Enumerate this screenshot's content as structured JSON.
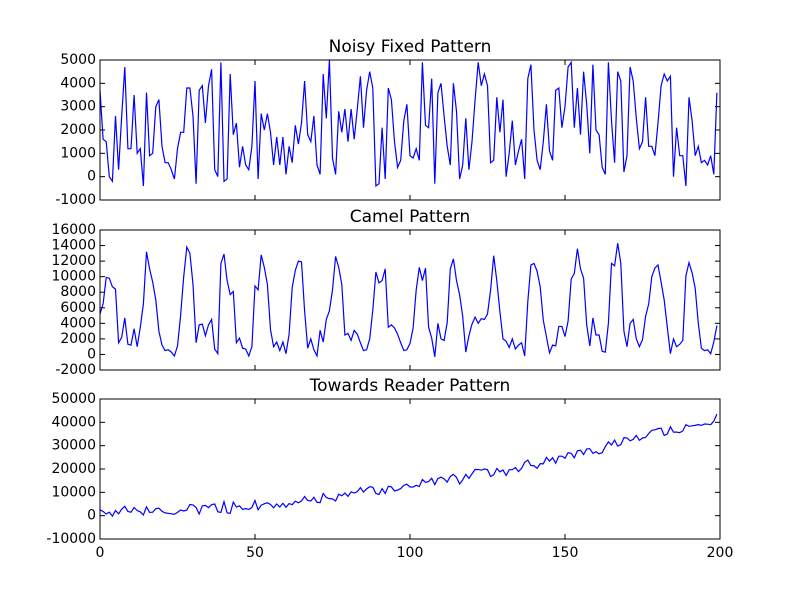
{
  "chart_data": [
    {
      "type": "line",
      "title": "Noisy Fixed Pattern",
      "x": [
        0,
        1,
        2,
        3,
        4,
        5,
        6,
        7,
        8,
        9,
        10,
        11,
        12,
        13,
        14,
        15,
        16,
        17,
        18,
        19,
        20,
        21,
        22,
        23,
        24,
        25,
        26,
        27,
        28,
        29,
        30,
        31,
        32,
        33,
        34,
        35,
        36,
        37,
        38,
        39,
        40,
        41,
        42,
        43,
        44,
        45,
        46,
        47,
        48,
        49,
        50,
        51,
        52,
        53,
        54,
        55,
        56,
        57,
        58,
        59,
        60,
        61,
        62,
        63,
        64,
        65,
        66,
        67,
        68,
        69,
        70,
        71,
        72,
        73,
        74,
        75,
        76,
        77,
        78,
        79,
        80,
        81,
        82,
        83,
        84,
        85,
        86,
        87,
        88,
        89,
        90,
        91,
        92,
        93,
        94,
        95,
        96,
        97,
        98,
        99,
        100,
        101,
        102,
        103,
        104,
        105,
        106,
        107,
        108,
        109,
        110,
        111,
        112,
        113,
        114,
        115,
        116,
        117,
        118,
        119,
        120,
        121,
        122,
        123,
        124,
        125,
        126,
        127,
        128,
        129,
        130,
        131,
        132,
        133,
        134,
        135,
        136,
        137,
        138,
        139,
        140,
        141,
        142,
        143,
        144,
        145,
        146,
        147,
        148,
        149,
        150,
        151,
        152,
        153,
        154,
        155,
        156,
        157,
        158,
        159,
        160,
        161,
        162,
        163,
        164,
        165,
        166,
        167,
        168,
        169,
        170,
        171,
        172,
        173,
        174,
        175,
        176,
        177,
        178,
        179,
        180,
        181,
        182,
        183,
        184,
        185,
        186,
        187,
        188,
        189,
        190,
        191,
        192,
        193,
        194,
        195,
        196,
        197,
        198,
        199
      ],
      "series": [
        {
          "color": "#0000ff",
          "values": [
            3700,
            1600,
            1500,
            0,
            -200,
            2600,
            300,
            2600,
            4700,
            1200,
            1200,
            3500,
            1000,
            1200,
            -400,
            3600,
            900,
            1000,
            3000,
            3300,
            1300,
            600,
            600,
            300,
            -100,
            1200,
            1900,
            1900,
            3800,
            3800,
            2600,
            -300,
            3700,
            3900,
            2300,
            3900,
            4600,
            300,
            0,
            4900,
            -200,
            -100,
            4400,
            1800,
            2300,
            400,
            1300,
            500,
            300,
            1300,
            4100,
            -100,
            2700,
            2000,
            2700,
            1900,
            500,
            1700,
            500,
            1700,
            100,
            1300,
            600,
            2200,
            1400,
            2300,
            4100,
            1800,
            1500,
            2600,
            500,
            100,
            4400,
            2500,
            5000,
            800,
            100,
            2800,
            1900,
            2900,
            1500,
            2900,
            1600,
            2900,
            4300,
            2100,
            3700,
            4500,
            3800,
            -400,
            -300,
            2100,
            -100,
            3800,
            3300,
            1500,
            400,
            700,
            2400,
            3100,
            900,
            800,
            1200,
            700,
            4900,
            2200,
            2100,
            4200,
            -300,
            3600,
            4000,
            2600,
            1300,
            500,
            4000,
            2800,
            -100,
            500,
            2500,
            300,
            1500,
            3300,
            4900,
            3900,
            4400,
            3900,
            600,
            700,
            3400,
            1900,
            3300,
            0,
            1000,
            2400,
            500,
            1100,
            1600,
            -100,
            4200,
            4800,
            2000,
            700,
            300,
            1500,
            3100,
            1100,
            700,
            3700,
            3800,
            2100,
            3000,
            4700,
            4900,
            2100,
            3800,
            1800,
            4500,
            3100,
            1000,
            4800,
            2000,
            1800,
            400,
            100,
            4900,
            2400,
            600,
            4500,
            4100,
            200,
            900,
            4700,
            4100,
            2500,
            1200,
            1500,
            3400,
            1300,
            1300,
            900,
            2300,
            3900,
            4400,
            4100,
            4300,
            0,
            2100,
            900,
            900,
            -400,
            3400,
            2400,
            900,
            1300,
            600,
            700,
            500,
            900,
            100,
            3600
          ]
        }
      ],
      "xlim": [
        0,
        200
      ],
      "ylim": [
        -1000,
        5000
      ],
      "yticks": [
        -1000,
        0,
        1000,
        2000,
        3000,
        4000,
        5000
      ]
    },
    {
      "type": "line",
      "title": "Camel Pattern",
      "x": [
        0,
        1,
        2,
        3,
        4,
        5,
        6,
        7,
        8,
        9,
        10,
        11,
        12,
        13,
        14,
        15,
        16,
        17,
        18,
        19,
        20,
        21,
        22,
        23,
        24,
        25,
        26,
        27,
        28,
        29,
        30,
        31,
        32,
        33,
        34,
        35,
        36,
        37,
        38,
        39,
        40,
        41,
        42,
        43,
        44,
        45,
        46,
        47,
        48,
        49,
        50,
        51,
        52,
        53,
        54,
        55,
        56,
        57,
        58,
        59,
        60,
        61,
        62,
        63,
        64,
        65,
        66,
        67,
        68,
        69,
        70,
        71,
        72,
        73,
        74,
        75,
        76,
        77,
        78,
        79,
        80,
        81,
        82,
        83,
        84,
        85,
        86,
        87,
        88,
        89,
        90,
        91,
        92,
        93,
        94,
        95,
        96,
        97,
        98,
        99,
        100,
        101,
        102,
        103,
        104,
        105,
        106,
        107,
        108,
        109,
        110,
        111,
        112,
        113,
        114,
        115,
        116,
        117,
        118,
        119,
        120,
        121,
        122,
        123,
        124,
        125,
        126,
        127,
        128,
        129,
        130,
        131,
        132,
        133,
        134,
        135,
        136,
        137,
        138,
        139,
        140,
        141,
        142,
        143,
        144,
        145,
        146,
        147,
        148,
        149,
        150,
        151,
        152,
        153,
        154,
        155,
        156,
        157,
        158,
        159,
        160,
        161,
        162,
        163,
        164,
        165,
        166,
        167,
        168,
        169,
        170,
        171,
        172,
        173,
        174,
        175,
        176,
        177,
        178,
        179,
        180,
        181,
        182,
        183,
        184,
        185,
        186,
        187,
        188,
        189,
        190,
        191,
        192,
        193,
        194,
        195,
        196,
        197,
        198,
        199
      ],
      "series": [
        {
          "color": "#0000ff",
          "values": [
            5200,
            6500,
            9900,
            9800,
            8700,
            8400,
            1500,
            2200,
            4700,
            1300,
            1200,
            3300,
            1000,
            3500,
            6500,
            13200,
            11000,
            9300,
            7000,
            3000,
            1200,
            500,
            600,
            300,
            -200,
            1100,
            5000,
            10000,
            13800,
            13000,
            9000,
            1500,
            3800,
            3900,
            2400,
            3800,
            4500,
            700,
            100,
            11700,
            12900,
            9500,
            7700,
            8100,
            1500,
            2100,
            800,
            700,
            -200,
            1000,
            8800,
            8300,
            12800,
            11200,
            9000,
            3200,
            1000,
            1600,
            500,
            1600,
            100,
            2600,
            8600,
            10800,
            12000,
            11900,
            5600,
            800,
            2000,
            600,
            -200,
            3100,
            1600,
            4500,
            5600,
            8300,
            12600,
            11200,
            9000,
            2500,
            2700,
            1800,
            3100,
            2600,
            1500,
            500,
            600,
            2000,
            5700,
            10600,
            9200,
            9500,
            11000,
            3500,
            3800,
            3400,
            2600,
            1500,
            500,
            600,
            1400,
            3400,
            8300,
            11200,
            9500,
            11100,
            3500,
            2100,
            -300,
            4000,
            2000,
            1800,
            4100,
            11000,
            12300,
            9500,
            7700,
            4900,
            300,
            2400,
            3900,
            4800,
            4000,
            4600,
            4500,
            5200,
            8300,
            12700,
            9500,
            5500,
            2000,
            1700,
            900,
            2000,
            700,
            1200,
            1500,
            -200,
            6800,
            11500,
            11700,
            10700,
            8700,
            4400,
            2300,
            200,
            1200,
            1100,
            3600,
            3600,
            2300,
            4300,
            9700,
            10400,
            13600,
            11000,
            9800,
            3800,
            1100,
            4700,
            2500,
            2500,
            400,
            300,
            4000,
            11700,
            11400,
            14300,
            11700,
            3000,
            1000,
            4000,
            4500,
            2000,
            1000,
            1900,
            4900,
            6500,
            10000,
            11100,
            11500,
            9300,
            7000,
            3500,
            100,
            2000,
            1000,
            1300,
            1800,
            10100,
            11800,
            10500,
            8500,
            4000,
            800,
            500,
            600,
            100,
            1600,
            3700
          ]
        }
      ],
      "xlim": [
        0,
        200
      ],
      "ylim": [
        -2000,
        16000
      ],
      "yticks": [
        -2000,
        0,
        2000,
        4000,
        6000,
        8000,
        10000,
        12000,
        14000,
        16000
      ]
    },
    {
      "type": "line",
      "title": "Towards Reader Pattern",
      "x": [
        0,
        1,
        2,
        3,
        4,
        5,
        6,
        7,
        8,
        9,
        10,
        11,
        12,
        13,
        14,
        15,
        16,
        17,
        18,
        19,
        20,
        21,
        22,
        23,
        24,
        25,
        26,
        27,
        28,
        29,
        30,
        31,
        32,
        33,
        34,
        35,
        36,
        37,
        38,
        39,
        40,
        41,
        42,
        43,
        44,
        45,
        46,
        47,
        48,
        49,
        50,
        51,
        52,
        53,
        54,
        55,
        56,
        57,
        58,
        59,
        60,
        61,
        62,
        63,
        64,
        65,
        66,
        67,
        68,
        69,
        70,
        71,
        72,
        73,
        74,
        75,
        76,
        77,
        78,
        79,
        80,
        81,
        82,
        83,
        84,
        85,
        86,
        87,
        88,
        89,
        90,
        91,
        92,
        93,
        94,
        95,
        96,
        97,
        98,
        99,
        100,
        101,
        102,
        103,
        104,
        105,
        106,
        107,
        108,
        109,
        110,
        111,
        112,
        113,
        114,
        115,
        116,
        117,
        118,
        119,
        120,
        121,
        122,
        123,
        124,
        125,
        126,
        127,
        128,
        129,
        130,
        131,
        132,
        133,
        134,
        135,
        136,
        137,
        138,
        139,
        140,
        141,
        142,
        143,
        144,
        145,
        146,
        147,
        148,
        149,
        150,
        151,
        152,
        153,
        154,
        155,
        156,
        157,
        158,
        159,
        160,
        161,
        162,
        163,
        164,
        165,
        166,
        167,
        168,
        169,
        170,
        171,
        172,
        173,
        174,
        175,
        176,
        177,
        178,
        179,
        180,
        181,
        182,
        183,
        184,
        185,
        186,
        187,
        188,
        189,
        190,
        191,
        192,
        193,
        194,
        195,
        196,
        197,
        198,
        199
      ],
      "series": [
        {
          "color": "#0000ff",
          "values": [
            2500,
            1800,
            700,
            1500,
            -200,
            2200,
            800,
            2800,
            4000,
            1800,
            1500,
            3500,
            2200,
            1600,
            300,
            3800,
            1400,
            1500,
            3000,
            3200,
            1900,
            1200,
            1000,
            800,
            600,
            1400,
            2400,
            2000,
            2400,
            4800,
            4600,
            3500,
            700,
            4200,
            4400,
            3400,
            4700,
            5000,
            1700,
            1400,
            6000,
            1200,
            1000,
            5800,
            3700,
            4200,
            2700,
            3000,
            2700,
            3500,
            6500,
            2500,
            4500,
            5100,
            5500,
            4800,
            3400,
            5000,
            3700,
            5300,
            3600,
            5200,
            4700,
            6200,
            5500,
            6300,
            8200,
            6500,
            6300,
            7900,
            5700,
            5600,
            9500,
            7800,
            7300,
            7200,
            6300,
            9200,
            8500,
            9700,
            8300,
            10200,
            9700,
            10300,
            12000,
            10100,
            11500,
            12400,
            12200,
            9500,
            9100,
            11600,
            9500,
            12600,
            12300,
            10600,
            11000,
            11600,
            13000,
            13500,
            12300,
            12300,
            13000,
            12500,
            15500,
            14300,
            14600,
            16000,
            13300,
            15900,
            16500,
            15800,
            14400,
            16800,
            17700,
            16400,
            13600,
            15300,
            17700,
            16000,
            17900,
            19800,
            19800,
            19500,
            20000,
            19700,
            16800,
            17500,
            20200,
            18800,
            19600,
            17200,
            19700,
            19700,
            20600,
            18900,
            20300,
            22900,
            23800,
            21500,
            21400,
            20300,
            22300,
            22200,
            25000,
            23400,
            24800,
            22500,
            25500,
            25500,
            24600,
            27000,
            26700,
            24800,
            27800,
            28000,
            26200,
            28600,
            28700,
            26700,
            27400,
            26500,
            27000,
            29600,
            31600,
            30300,
            32400,
            29800,
            30400,
            33400,
            33300,
            32100,
            32700,
            34400,
            32300,
            33300,
            33500,
            35200,
            36600,
            36800,
            37300,
            37500,
            34400,
            35000,
            38100,
            35800,
            35800,
            35600,
            36300,
            39000,
            38300,
            38500,
            38700,
            39000,
            38700,
            39300,
            39200,
            39000,
            40500,
            43500
          ]
        }
      ],
      "xlim": [
        0,
        200
      ],
      "xticks": [
        0,
        50,
        100,
        150,
        200
      ],
      "ylim": [
        -10000,
        50000
      ],
      "yticks": [
        -10000,
        0,
        10000,
        20000,
        30000,
        40000,
        50000
      ]
    }
  ]
}
